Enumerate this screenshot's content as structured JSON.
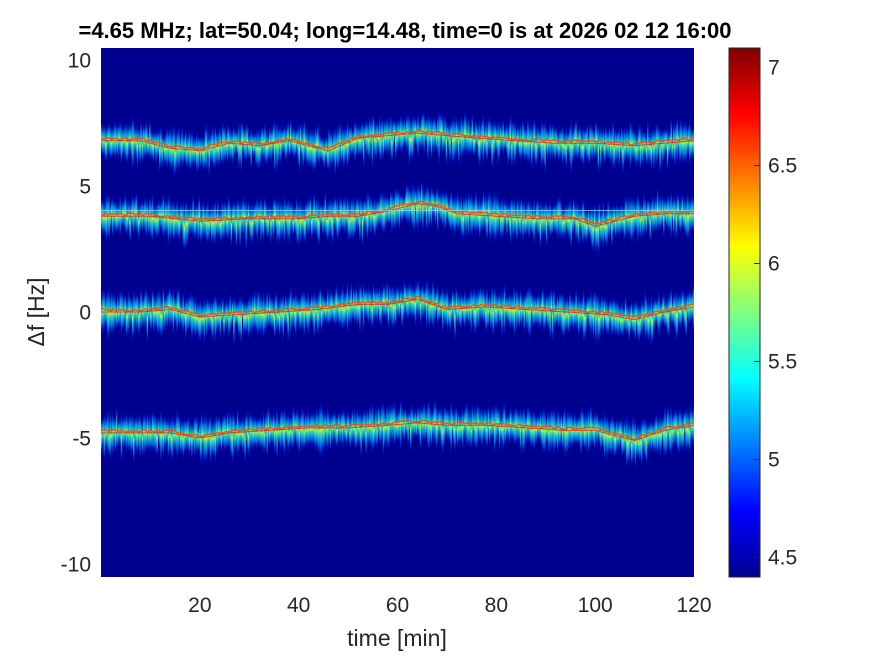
{
  "chart_data": {
    "type": "heatmap",
    "title": "=4.65 MHz;  lat=50.04; long=14.48, time=0 is at 2026 02 12 16:00",
    "xlabel": "time [min]",
    "ylabel": "Δf [Hz]",
    "xlim": [
      0,
      120
    ],
    "ylim": [
      -10.5,
      10.5
    ],
    "xticks": [
      20,
      40,
      60,
      80,
      100,
      120
    ],
    "xtick_labels": [
      "20",
      "40",
      "60",
      "80",
      "100",
      "120"
    ],
    "yticks": [
      -10,
      -5,
      0,
      5,
      10
    ],
    "ytick_labels": [
      "-10",
      "-5",
      "0",
      "5",
      "10"
    ],
    "colorbar": {
      "colormap": "jet",
      "clim": [
        4.4,
        7.1
      ],
      "ticks": [
        4.5,
        5,
        5.5,
        6,
        6.5,
        7
      ],
      "tick_labels": [
        "4.5",
        "5",
        "5.5",
        "6",
        "6.5",
        "7"
      ]
    },
    "background_color": "#00008f",
    "series": [
      {
        "t": [
          0,
          8,
          14,
          20,
          26,
          32,
          38,
          46,
          52,
          58,
          64,
          70,
          76,
          84,
          92,
          100,
          108,
          114,
          120
        ],
        "df": [
          6.9,
          6.9,
          6.6,
          6.5,
          6.8,
          6.7,
          6.9,
          6.5,
          7.0,
          7.1,
          7.2,
          7.1,
          7.0,
          6.9,
          6.8,
          6.8,
          6.7,
          6.8,
          6.9
        ]
      },
      {
        "t": [
          0,
          10,
          20,
          30,
          40,
          46,
          52,
          58,
          64,
          68,
          72,
          80,
          88,
          96,
          100,
          108,
          114,
          120
        ],
        "df": [
          3.9,
          3.9,
          3.7,
          3.8,
          3.8,
          3.9,
          3.9,
          4.1,
          4.4,
          4.3,
          4.0,
          3.9,
          3.8,
          3.8,
          3.5,
          3.9,
          4.0,
          4.0
        ]
      },
      {
        "t": [
          0,
          8,
          14,
          20,
          28,
          36,
          44,
          52,
          58,
          64,
          70,
          78,
          86,
          94,
          102,
          108,
          114,
          120
        ],
        "df": [
          0.1,
          0.1,
          0.2,
          -0.1,
          0.0,
          0.1,
          0.2,
          0.4,
          0.4,
          0.6,
          0.2,
          0.3,
          0.2,
          0.1,
          0.0,
          -0.2,
          0.1,
          0.3
        ]
      },
      {
        "t": [
          0,
          8,
          14,
          20,
          26,
          34,
          42,
          50,
          58,
          64,
          70,
          78,
          86,
          94,
          100,
          108,
          114,
          120
        ],
        "df": [
          -4.7,
          -4.7,
          -4.7,
          -4.9,
          -4.7,
          -4.6,
          -4.5,
          -4.5,
          -4.4,
          -4.3,
          -4.4,
          -4.4,
          -4.5,
          -4.6,
          -4.6,
          -5.0,
          -4.6,
          -4.4
        ]
      }
    ],
    "reference_line_df": 4.05
  }
}
